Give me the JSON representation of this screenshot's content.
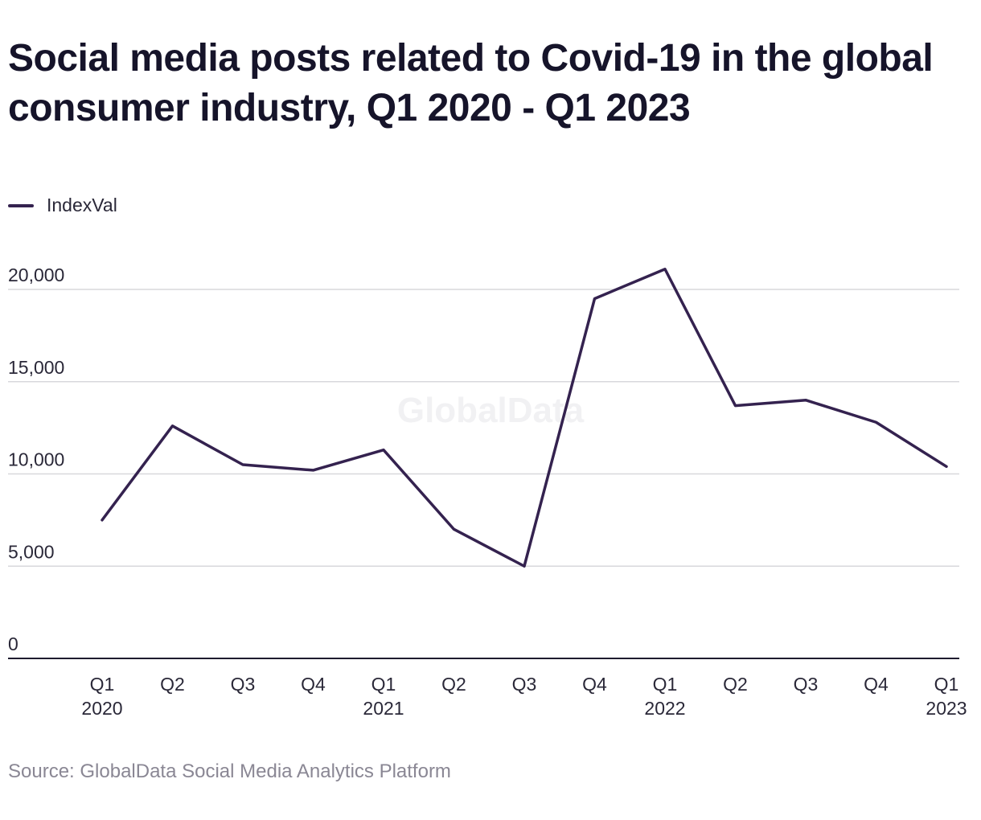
{
  "title": "Social media posts related to Covid-19 in the global consumer industry, Q1 2020 - Q1 2023",
  "source": "Source: GlobalData Social Media Analytics Platform",
  "watermark": "GlobalData",
  "colors": {
    "line": "#34224f",
    "grid": "#d8d8dc",
    "axis": "#1e1b2e"
  },
  "chart_data": {
    "type": "line",
    "title": "Social media posts related to Covid-19 in the global consumer industry, Q1 2020 - Q1 2023",
    "categories": [
      [
        "Q1",
        "2020"
      ],
      [
        "Q2"
      ],
      [
        "Q3"
      ],
      [
        "Q4"
      ],
      [
        "Q1",
        "2021"
      ],
      [
        "Q2"
      ],
      [
        "Q3"
      ],
      [
        "Q4"
      ],
      [
        "Q1",
        "2022"
      ],
      [
        "Q2"
      ],
      [
        "Q3"
      ],
      [
        "Q4"
      ],
      [
        "Q1",
        "2023"
      ]
    ],
    "series": [
      {
        "name": "IndexVal",
        "values": [
          7500,
          12600,
          10500,
          10200,
          11300,
          7000,
          5000,
          19500,
          21100,
          13700,
          14000,
          12800,
          10400
        ]
      }
    ],
    "y_ticks": [
      0,
      5000,
      10000,
      15000,
      20000
    ],
    "y_tick_labels": [
      "0",
      "5,000",
      "10,000",
      "15,000",
      "20,000"
    ],
    "ylim": [
      0,
      20000
    ],
    "grid": true,
    "legend_position": "top-left"
  }
}
